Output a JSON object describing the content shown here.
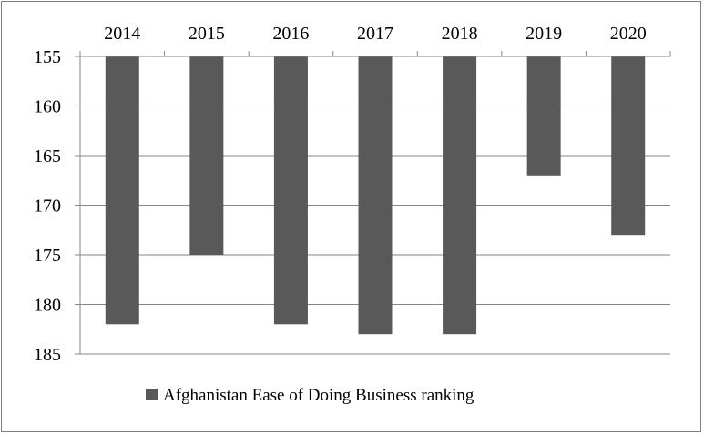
{
  "chart_data": {
    "type": "bar",
    "categories": [
      "2014",
      "2015",
      "2016",
      "2017",
      "2018",
      "2019",
      "2020"
    ],
    "series": [
      {
        "name": "Afghanistan Ease of Doing Business ranking",
        "values": [
          182,
          175,
          182,
          183,
          183,
          167,
          173
        ],
        "color": "#595959"
      }
    ],
    "ylim": [
      155,
      185
    ],
    "y_inverted": true,
    "y_ticks": [
      "155",
      "160",
      "165",
      "170",
      "175",
      "180",
      "185"
    ],
    "x_axis_position": "top",
    "grid": true,
    "legend": "bottom-center",
    "title": "",
    "xlabel": "",
    "ylabel": ""
  }
}
